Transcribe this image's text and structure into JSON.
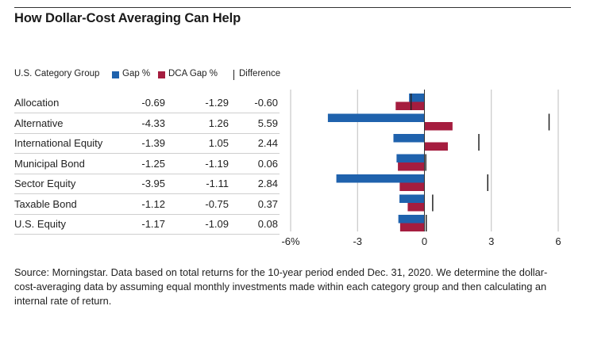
{
  "title": "How Dollar-Cost Averaging Can Help",
  "table": {
    "header": "U.S. Category Group"
  },
  "legend": {
    "gap_label": "Gap %",
    "dca_label": "DCA Gap %",
    "diff_label": "Difference"
  },
  "colors": {
    "gap": "#1f62ad",
    "dca": "#a51d3f",
    "difference": "#222222",
    "grid": "#bdbdbd"
  },
  "chart_data": {
    "type": "bar",
    "orientation": "horizontal",
    "categories": [
      "Allocation",
      "Alternative",
      "International Equity",
      "Municipal Bond",
      "Sector Equity",
      "Taxable Bond",
      "U.S. Equity"
    ],
    "series": [
      {
        "name": "Gap %",
        "values": [
          -0.69,
          -4.33,
          -1.39,
          -1.25,
          -3.95,
          -1.12,
          -1.17
        ]
      },
      {
        "name": "DCA Gap %",
        "values": [
          -1.29,
          1.26,
          1.05,
          -1.19,
          -1.11,
          -0.75,
          -1.09
        ]
      },
      {
        "name": "Difference",
        "values": [
          -0.6,
          5.59,
          2.44,
          0.06,
          2.84,
          0.37,
          0.08
        ]
      }
    ],
    "value_labels": {
      "gap": [
        "-0.69",
        "-4.33",
        "-1.39",
        "-1.25",
        "-3.95",
        "-1.12",
        "-1.17"
      ],
      "dca": [
        "-1.29",
        "1.26",
        "1.05",
        "-1.19",
        "-1.11",
        "-0.75",
        "-1.09"
      ],
      "diff": [
        "-0.60",
        "5.59",
        "2.44",
        "0.06",
        "2.84",
        "0.37",
        "0.08"
      ]
    },
    "xlim": [
      -6,
      6
    ],
    "xticks": [
      -6,
      -3,
      0,
      3,
      6
    ],
    "xtick_labels": [
      "-6%",
      "-3",
      "0",
      "3",
      "6"
    ],
    "grid": true,
    "legend_position": "top"
  },
  "source": "Source: Morningstar. Data based on total returns for the 10-year period ended Dec. 31, 2020. We determine the dollar-cost-averaging data by assuming equal monthly investments made within each category group and then calculating an internal rate of return."
}
